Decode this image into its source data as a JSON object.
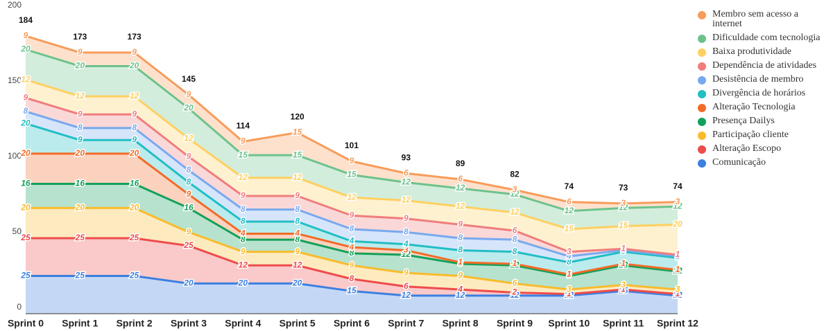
{
  "chart_data": {
    "type": "stacked-area",
    "categories": [
      "Sprint 0",
      "Sprint 1",
      "Sprint 2",
      "Sprint 3",
      "Sprint 4",
      "Sprint 5",
      "Sprint 6",
      "Sprint 7",
      "Sprint 8",
      "Sprint 9",
      "Sprint 10",
      "Sprint 11",
      "Sprint 12"
    ],
    "totals": [
      184,
      173,
      173,
      145,
      114,
      120,
      101,
      93,
      89,
      82,
      74,
      73,
      74
    ],
    "ylim": [
      0,
      200
    ],
    "yticks": [
      0,
      50,
      100,
      150,
      200
    ],
    "grid": false,
    "legend": "right",
    "series": [
      {
        "name": "Comunicação",
        "color": "#3c7fe0",
        "values": [
          25,
          25,
          25,
          20,
          20,
          20,
          15,
          12,
          12,
          12,
          12,
          15,
          12
        ]
      },
      {
        "name": "Alteração Escopo",
        "color": "#ee4b4b",
        "values": [
          25,
          25,
          25,
          25,
          12,
          12,
          8,
          6,
          4,
          2,
          1,
          1,
          1
        ]
      },
      {
        "name": "Participação cliente",
        "color": "#f9bb2c",
        "values": [
          20,
          20,
          20,
          9,
          9,
          9,
          9,
          9,
          9,
          6,
          3,
          3,
          3
        ]
      },
      {
        "name": "Presença Dailys",
        "color": "#12a05a",
        "values": [
          16,
          16,
          16,
          16,
          8,
          8,
          8,
          12,
          8,
          12,
          9,
          13,
          12
        ]
      },
      {
        "name": "Alteração Tecnologia",
        "color": "#f26b27",
        "values": [
          20,
          20,
          20,
          9,
          4,
          4,
          4,
          3,
          1,
          1,
          1,
          1,
          1
        ]
      },
      {
        "name": "Divergência de horários",
        "color": "#21bec4",
        "values": [
          20,
          9,
          9,
          8,
          8,
          8,
          4,
          4,
          8,
          8,
          8,
          8,
          8
        ]
      },
      {
        "name": "Desistência de membro",
        "color": "#78a9ee",
        "values": [
          8,
          8,
          8,
          8,
          8,
          8,
          8,
          8,
          8,
          8,
          4,
          1,
          1
        ]
      },
      {
        "name": "Dependência de atividades",
        "color": "#f07d7d",
        "values": [
          9,
          9,
          9,
          9,
          9,
          9,
          9,
          9,
          9,
          6,
          3,
          1,
          1
        ]
      },
      {
        "name": "Baixa produtividade",
        "color": "#fdd061",
        "values": [
          12,
          12,
          12,
          12,
          12,
          12,
          12,
          12,
          12,
          12,
          15,
          15,
          20
        ]
      },
      {
        "name": "Dificuldade com tecnologia",
        "color": "#6dc28c",
        "values": [
          20,
          20,
          20,
          20,
          15,
          15,
          15,
          12,
          12,
          12,
          12,
          12,
          12
        ]
      },
      {
        "name": "Membro sem acesso a internet",
        "color": "#f79c5a",
        "values": [
          9,
          9,
          9,
          9,
          9,
          15,
          9,
          6,
          6,
          3,
          6,
          3,
          3
        ]
      }
    ]
  }
}
